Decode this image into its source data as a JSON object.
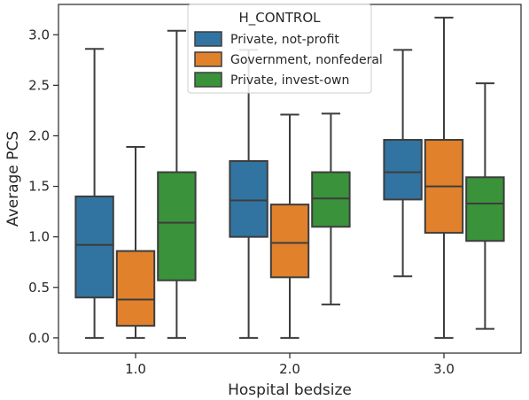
{
  "chart_data": {
    "type": "boxplot",
    "xlabel": "Hospital bedsize",
    "ylabel": "Average PCS",
    "categories": [
      "1.0",
      "2.0",
      "3.0"
    ],
    "ylim": [
      -0.15,
      3.3
    ],
    "yticks": [
      0.0,
      0.5,
      1.0,
      1.5,
      2.0,
      2.5,
      3.0
    ],
    "ytick_labels": [
      "0.0",
      "0.5",
      "1.0",
      "1.5",
      "2.0",
      "2.5",
      "3.0"
    ],
    "grid": false,
    "legend": {
      "title": "H_CONTROL",
      "placement": "top-center"
    },
    "series": [
      {
        "name": "Private, not-profit",
        "color": "#3274a1",
        "boxes": [
          {
            "category": "1.0",
            "whislo": 0.0,
            "q1": 0.4,
            "med": 0.92,
            "q3": 1.4,
            "whishi": 2.86
          },
          {
            "category": "2.0",
            "whislo": 0.0,
            "q1": 1.0,
            "med": 1.36,
            "q3": 1.75,
            "whishi": 2.85
          },
          {
            "category": "3.0",
            "whislo": 0.61,
            "q1": 1.37,
            "med": 1.64,
            "q3": 1.96,
            "whishi": 2.85
          }
        ]
      },
      {
        "name": "Government, nonfederal",
        "color": "#e1812c",
        "boxes": [
          {
            "category": "1.0",
            "whislo": 0.0,
            "q1": 0.12,
            "med": 0.38,
            "q3": 0.86,
            "whishi": 1.89
          },
          {
            "category": "2.0",
            "whislo": 0.0,
            "q1": 0.6,
            "med": 0.94,
            "q3": 1.32,
            "whishi": 2.21
          },
          {
            "category": "3.0",
            "whislo": 0.0,
            "q1": 1.04,
            "med": 1.5,
            "q3": 1.96,
            "whishi": 3.17
          }
        ]
      },
      {
        "name": "Private, invest-own",
        "color": "#3a923a",
        "boxes": [
          {
            "category": "1.0",
            "whislo": 0.0,
            "q1": 0.57,
            "med": 1.14,
            "q3": 1.64,
            "whishi": 3.04
          },
          {
            "category": "2.0",
            "whislo": 0.33,
            "q1": 1.1,
            "med": 1.38,
            "q3": 1.64,
            "whishi": 2.22
          },
          {
            "category": "3.0",
            "whislo": 0.09,
            "q1": 0.96,
            "med": 1.33,
            "q3": 1.59,
            "whishi": 2.52
          }
        ]
      }
    ]
  }
}
